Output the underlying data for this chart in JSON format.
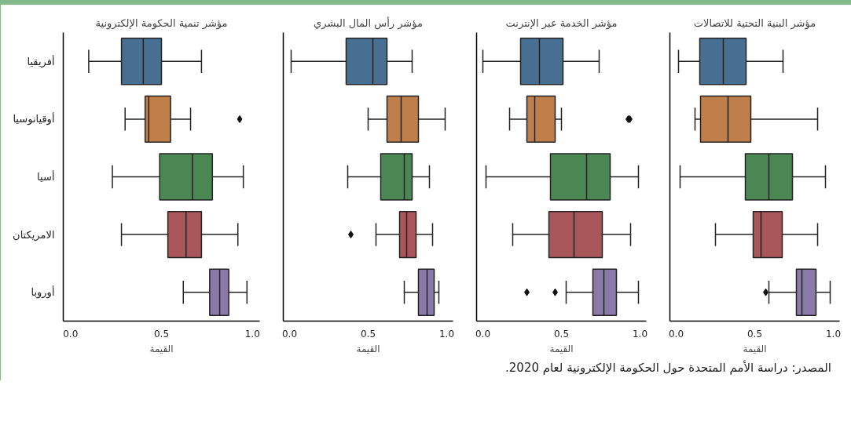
{
  "chart_data": [
    {
      "type": "box",
      "orientation": "horizontal",
      "title": "مؤشر تنمية الحكومة الإلكترونية",
      "xlabel": "القيمة",
      "categories": [
        "أفريقيا",
        "أوقيانوسيا",
        "أسيا",
        "الامريكتان",
        "أوروبا"
      ],
      "colors": [
        "#466f91",
        "#c07f4a",
        "#4a8753",
        "#a9565b",
        "#8a7aa9"
      ],
      "xlim": [
        -0.04,
        1.04
      ],
      "xticks": [
        {
          "value": 0,
          "label": "0.0"
        },
        {
          "value": 0.5,
          "label": "0.5"
        },
        {
          "value": 1,
          "label": "1.0"
        }
      ],
      "grid": false,
      "marker": "diamond",
      "boxes": [
        {
          "low": 0.1,
          "q1": 0.28,
          "median": 0.4,
          "q3": 0.5,
          "high": 0.72
        },
        {
          "low": 0.3,
          "q1": 0.41,
          "median": 0.43,
          "q3": 0.55,
          "high": 0.66,
          "outliers": [
            0.93
          ]
        },
        {
          "low": 0.23,
          "q1": 0.49,
          "median": 0.67,
          "q3": 0.78,
          "high": 0.95
        },
        {
          "low": 0.28,
          "q1": 0.535,
          "median": 0.635,
          "q3": 0.72,
          "high": 0.92
        },
        {
          "low": 0.62,
          "q1": 0.765,
          "median": 0.82,
          "q3": 0.87,
          "high": 0.97
        }
      ],
      "annotations": [
        "المصدر: دراسة الأمم المتحدة حول الحكومة الإلكترونية لعام 2020."
      ]
    },
    {
      "type": "box",
      "orientation": "horizontal",
      "title": "مؤشر رأس المال البشري",
      "xlabel": "القيمة",
      "colors": [
        "#466f91",
        "#c07f4a",
        "#4a8753",
        "#a9565b",
        "#8a7aa9"
      ],
      "xlim": [
        -0.04,
        1.04
      ],
      "xticks": [
        {
          "value": 0,
          "label": "0.0"
        },
        {
          "value": 0.5,
          "label": "0.5"
        },
        {
          "value": 1,
          "label": "1.0"
        }
      ],
      "grid": false,
      "marker": "diamond",
      "tick_labels": "x",
      "boxes": [
        {
          "low": 0.01,
          "q1": 0.36,
          "median": 0.53,
          "q3": 0.62,
          "high": 0.78
        },
        {
          "low": 0.5,
          "q1": 0.62,
          "median": 0.71,
          "q3": 0.82,
          "high": 0.99
        },
        {
          "low": 0.37,
          "q1": 0.58,
          "median": 0.73,
          "q3": 0.78,
          "high": 0.89
        },
        {
          "low": 0.55,
          "q1": 0.7,
          "median": 0.745,
          "q3": 0.805,
          "high": 0.91,
          "outliers": [
            0.39
          ]
        },
        {
          "low": 0.73,
          "q1": 0.82,
          "median": 0.875,
          "q3": 0.92,
          "high": 0.95
        }
      ]
    },
    {
      "type": "box",
      "orientation": "horizontal",
      "title": "مؤشر الخدمة عبر الإنترنت",
      "xlabel": "القيمة",
      "colors": [
        "#466f91",
        "#c07f4a",
        "#4a8753",
        "#a9565b",
        "#8a7aa9"
      ],
      "xlim": [
        -0.04,
        1.04
      ],
      "xticks": [
        {
          "value": 0,
          "label": "0.0"
        },
        {
          "value": 0.5,
          "label": "0.5"
        },
        {
          "value": 1,
          "label": "1.0"
        }
      ],
      "grid": false,
      "marker": "diamond",
      "tick_labels": "x",
      "boxes": [
        {
          "low": 0.0,
          "q1": 0.24,
          "median": 0.36,
          "q3": 0.51,
          "high": 0.74
        },
        {
          "low": 0.17,
          "q1": 0.28,
          "median": 0.33,
          "q3": 0.46,
          "high": 0.5,
          "outliers": [
            0.925,
            0.935
          ]
        },
        {
          "low": 0.02,
          "q1": 0.43,
          "median": 0.66,
          "q3": 0.81,
          "high": 0.99
        },
        {
          "low": 0.19,
          "q1": 0.42,
          "median": 0.58,
          "q3": 0.76,
          "high": 0.94
        },
        {
          "low": 0.53,
          "q1": 0.7,
          "median": 0.77,
          "q3": 0.85,
          "high": 0.99,
          "outliers": [
            0.28,
            0.46
          ]
        }
      ]
    },
    {
      "type": "box",
      "orientation": "horizontal",
      "title": "مؤشر البنية التحتية للاتصالات",
      "xlabel": "القيمة",
      "colors": [
        "#466f91",
        "#c07f4a",
        "#4a8753",
        "#a9565b",
        "#8a7aa9"
      ],
      "xlim": [
        -0.04,
        1.04
      ],
      "xticks": [
        {
          "value": 0,
          "label": "0.0"
        },
        {
          "value": 0.5,
          "label": "0.5"
        },
        {
          "value": 1,
          "label": "1.0"
        }
      ],
      "grid": false,
      "marker": "diamond",
      "tick_labels": "x",
      "boxes": [
        {
          "low": 0.015,
          "q1": 0.15,
          "median": 0.3,
          "q3": 0.445,
          "high": 0.68
        },
        {
          "low": 0.12,
          "q1": 0.155,
          "median": 0.33,
          "q3": 0.475,
          "high": 0.9
        },
        {
          "low": 0.025,
          "q1": 0.44,
          "median": 0.59,
          "q3": 0.74,
          "high": 0.95
        },
        {
          "low": 0.25,
          "q1": 0.49,
          "median": 0.54,
          "q3": 0.675,
          "high": 0.9
        },
        {
          "low": 0.59,
          "q1": 0.765,
          "median": 0.8,
          "q3": 0.89,
          "high": 0.98,
          "outliers": [
            0.57
          ]
        }
      ]
    }
  ]
}
